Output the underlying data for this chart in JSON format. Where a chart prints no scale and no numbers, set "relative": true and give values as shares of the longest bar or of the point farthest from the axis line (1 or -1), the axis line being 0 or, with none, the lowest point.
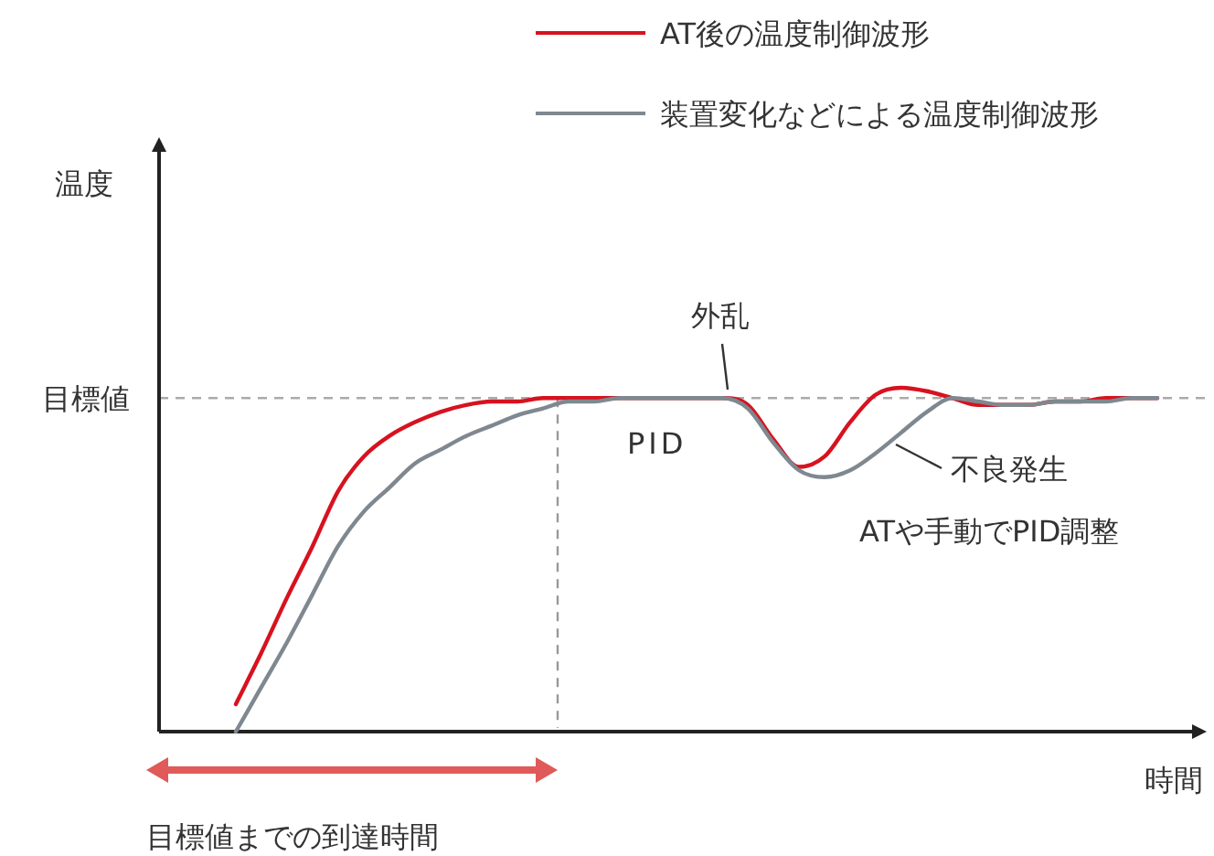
{
  "chart_data": {
    "type": "line",
    "relative": true,
    "xlabel": "時間",
    "legend": "top right",
    "marker": "none",
    "line_style": "solid",
    "categories": [
      null,
      null,
      null,
      null,
      null,
      null,
      null,
      null,
      null,
      null,
      null,
      null,
      null,
      null,
      null,
      null,
      null,
      null,
      null,
      null,
      null,
      null,
      null,
      null,
      null,
      null,
      null,
      null,
      null,
      null,
      null,
      null,
      null,
      null,
      null,
      null,
      null,
      null,
      null,
      null
    ],
    "series": [
      {
        "name": "AT後の温度制御波形",
        "color": "#d7121f",
        "values": [
          null,
          null,
          null,
          0.08,
          0.23,
          0.39,
          0.54,
          0.7,
          0.8,
          0.86,
          0.9,
          0.93,
          0.95,
          0.96,
          0.96,
          0.97,
          0.97,
          0.97,
          0.97,
          0.97,
          0.97,
          0.97,
          0.97,
          0.95,
          0.85,
          0.77,
          0.8,
          0.9,
          0.98,
          1.0,
          0.99,
          0.97,
          0.95,
          0.95,
          0.95,
          0.96,
          0.96,
          0.97,
          0.97,
          0.97
        ]
      },
      {
        "name": "装置変化などによる温度制御波形",
        "color": "#7f8890",
        "values": [
          null,
          null,
          null,
          0,
          0.13,
          0.26,
          0.4,
          0.54,
          0.64,
          0.71,
          0.78,
          0.82,
          0.86,
          0.89,
          0.92,
          0.94,
          0.96,
          0.96,
          0.97,
          0.97,
          0.97,
          0.97,
          0.97,
          0.94,
          0.84,
          0.76,
          0.74,
          0.76,
          0.81,
          0.87,
          0.93,
          0.97,
          0.96,
          0.95,
          0.95,
          0.96,
          0.96,
          0.96,
          0.97,
          0.97
        ]
      }
    ],
    "ref_lines": [
      {
        "axis": "y",
        "value": 0.97,
        "label": "目標値",
        "color": "#aaaaaa",
        "line_style": "dashed"
      }
    ],
    "annotations": [
      "外乱",
      "PID",
      "不良発生",
      "ATや手動でPID調整",
      "目標値までの到達時間",
      "温度"
    ]
  }
}
